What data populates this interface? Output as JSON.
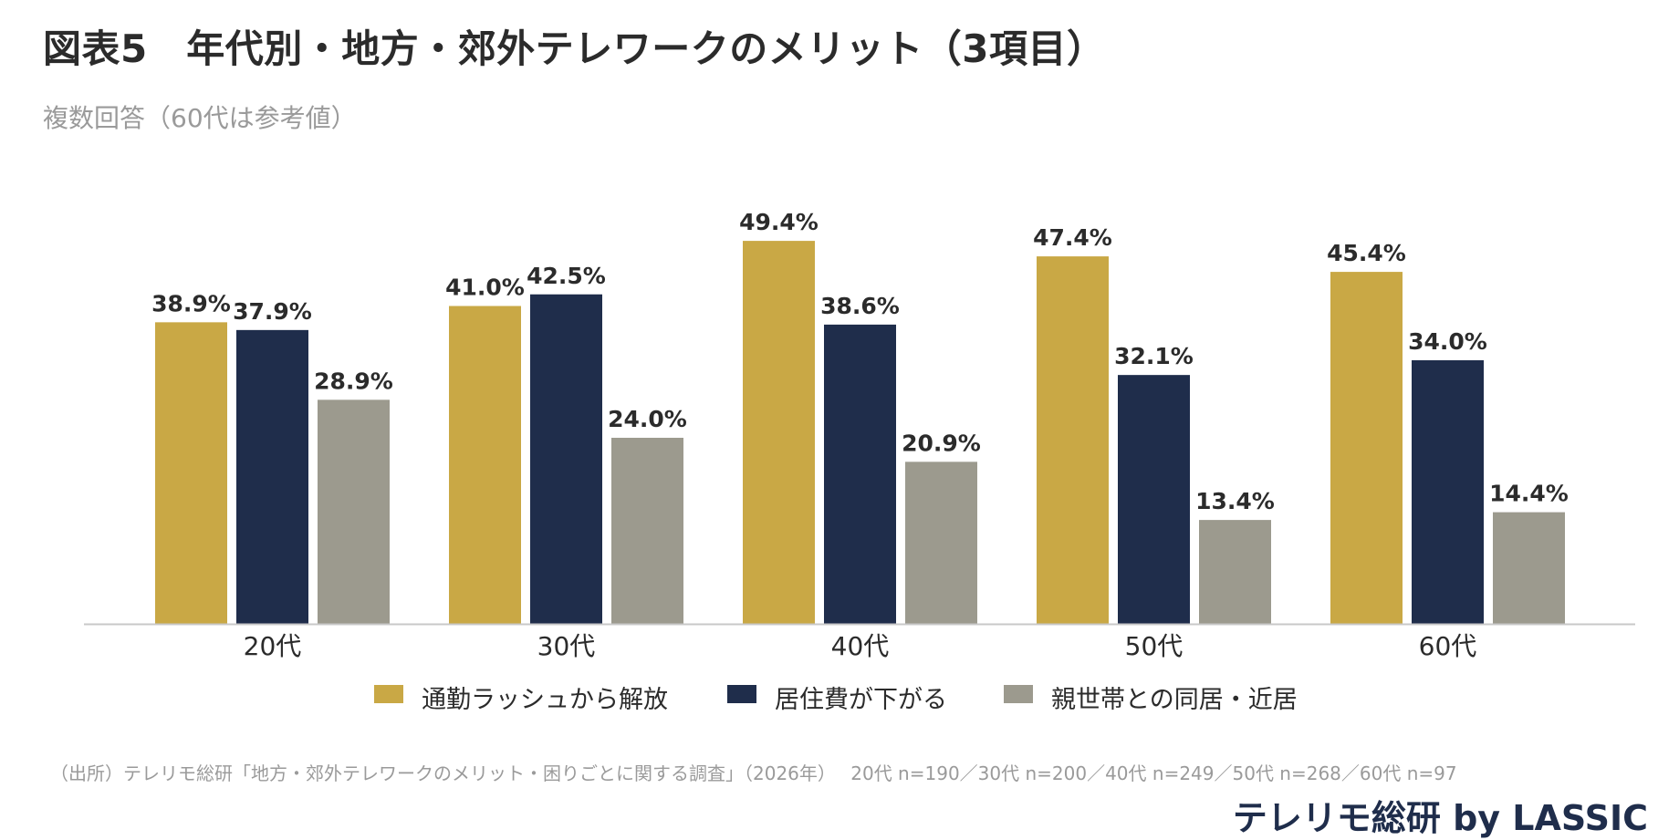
{
  "title": "図表5　年代別・地方・郊外テレワークのメリット（3項目）",
  "subtitle": "複数回答（60代は参考値）",
  "chart_data": {
    "type": "bar",
    "categories": [
      "20代",
      "30代",
      "40代",
      "50代",
      "60代"
    ],
    "series": [
      {
        "name": "通勤ラッシュから解放",
        "values": [
          38.9,
          41.0,
          49.4,
          47.4,
          45.4
        ],
        "color": "#c9a845"
      },
      {
        "name": "居住費が下がる",
        "values": [
          37.9,
          42.5,
          38.6,
          32.1,
          34.0
        ],
        "color": "#1f2d4b"
      },
      {
        "name": "親世帯との同居・近居",
        "values": [
          28.9,
          24.0,
          20.9,
          13.4,
          14.4
        ],
        "color": "#9c9a8e"
      }
    ],
    "value_suffix": "%",
    "ylim": [
      0,
      55
    ],
    "grid": false,
    "legend_position": "bottom"
  },
  "source": "（出所）テレリモ総研「地方・郊外テレワークのメリット・困りごとに関する調査」（2026年）　 20代 n=190／30代 n=200／40代 n=249／50代 n=268／60代 n=97",
  "brand": "テレリモ総研 by LASSIC"
}
